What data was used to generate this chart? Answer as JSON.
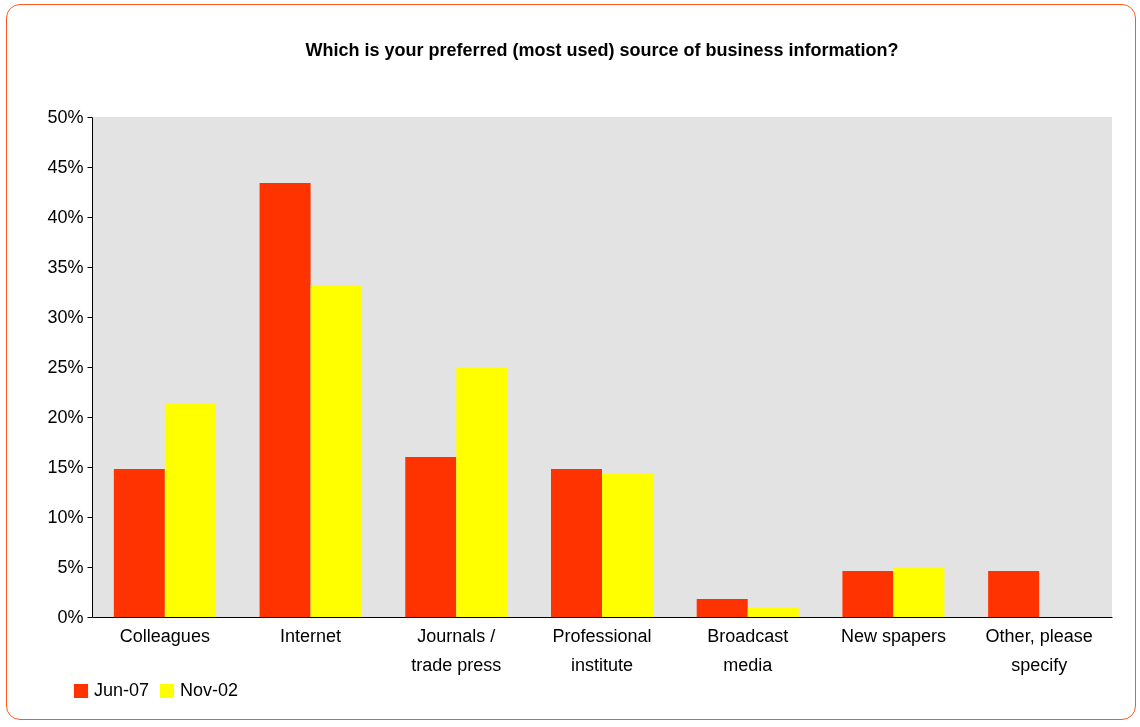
{
  "chart_data": {
    "type": "bar",
    "title": "Which is your preferred (most used) source of business information?",
    "categories": [
      "Colleagues",
      "Internet",
      "Journals / trade press",
      "Professional institute",
      "Broadcast media",
      "New spapers",
      "Other, please specify"
    ],
    "series": [
      {
        "name": "Jun-07",
        "color": "#ff3300",
        "values": [
          14.8,
          43.4,
          16.0,
          14.8,
          1.8,
          4.6,
          4.6
        ]
      },
      {
        "name": "Nov-02",
        "color": "#ffff00",
        "values": [
          21.4,
          33.2,
          24.9,
          14.4,
          0.9,
          5.0,
          null
        ]
      }
    ],
    "ylim": [
      0,
      50
    ],
    "yticks": [
      {
        "value": 0,
        "label": "0%"
      },
      {
        "value": 5,
        "label": "5%"
      },
      {
        "value": 10,
        "label": "10%"
      },
      {
        "value": 15,
        "label": "15%"
      },
      {
        "value": 20,
        "label": "20%"
      },
      {
        "value": 25,
        "label": "25%"
      },
      {
        "value": 30,
        "label": "30%"
      },
      {
        "value": 35,
        "label": "35%"
      },
      {
        "value": 40,
        "label": "40%"
      },
      {
        "value": 45,
        "label": "45%"
      },
      {
        "value": 50,
        "label": "50%"
      }
    ],
    "grid": false,
    "legend": "bottom left"
  }
}
